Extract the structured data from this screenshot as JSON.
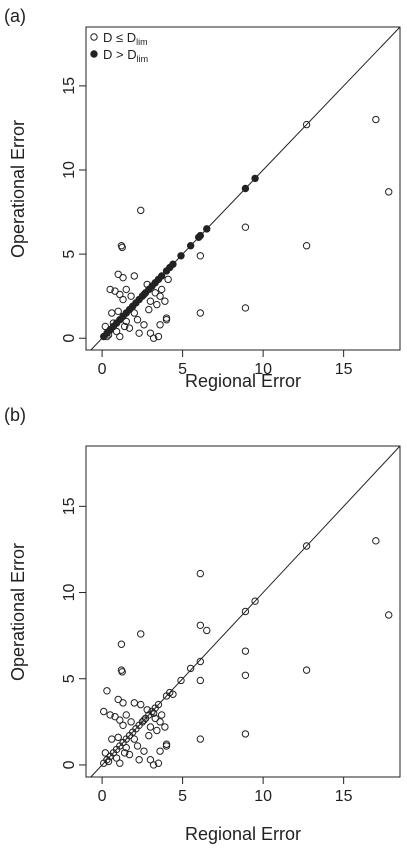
{
  "chart_data": [
    {
      "type": "scatter",
      "panel_label": "(a)",
      "xlabel": "Regional Error",
      "ylabel": "Operational Error",
      "xlim": [
        -1,
        18.5
      ],
      "ylim": [
        -0.7,
        18.5
      ],
      "x_ticks": [
        0,
        5,
        10,
        15
      ],
      "y_ticks": [
        0,
        5,
        10,
        15
      ],
      "identity_line": true,
      "legend": {
        "position": "top-left",
        "entries": [
          {
            "series": "open",
            "prefix": "D ≤ D",
            "sub": "lim"
          },
          {
            "series": "filled",
            "prefix": "D > D",
            "sub": "lim"
          }
        ]
      },
      "series": [
        {
          "key": "open",
          "marker": "open-circle",
          "points": [
            [
              17.0,
              13.0
            ],
            [
              17.8,
              8.7
            ],
            [
              12.7,
              5.5
            ],
            [
              8.9,
              6.6
            ],
            [
              8.9,
              1.8
            ],
            [
              6.1,
              4.9
            ],
            [
              6.1,
              1.5
            ],
            [
              2.4,
              7.6
            ],
            [
              1.2,
              5.5
            ],
            [
              1.25,
              5.4
            ],
            [
              1.0,
              3.8
            ],
            [
              1.3,
              3.6
            ],
            [
              2.0,
              3.7
            ],
            [
              0.5,
              2.9
            ],
            [
              0.8,
              2.8
            ],
            [
              1.1,
              2.6
            ],
            [
              1.3,
              2.3
            ],
            [
              1.8,
              2.5
            ],
            [
              2.6,
              2.6
            ],
            [
              3.0,
              2.2
            ],
            [
              3.4,
              2.0
            ],
            [
              3.7,
              2.9
            ],
            [
              3.6,
              2.5
            ],
            [
              0.2,
              0.7
            ],
            [
              0.5,
              0.5
            ],
            [
              0.7,
              0.9
            ],
            [
              0.4,
              0.2
            ],
            [
              1.0,
              1.6
            ],
            [
              1.5,
              1.0
            ],
            [
              2.0,
              1.5
            ],
            [
              2.3,
              0.3
            ],
            [
              2.6,
              0.8
            ],
            [
              3.0,
              0.3
            ],
            [
              3.2,
              0.0
            ],
            [
              3.5,
              0.1
            ],
            [
              3.6,
              0.8
            ],
            [
              4.0,
              1.2
            ],
            [
              4.0,
              1.1
            ],
            [
              1.1,
              0.1
            ],
            [
              0.9,
              0.4
            ],
            [
              1.5,
              2.9
            ],
            [
              2.8,
              3.2
            ],
            [
              3.3,
              2.7
            ],
            [
              0.6,
              1.5
            ],
            [
              2.2,
              1.1
            ],
            [
              3.9,
              2.2
            ],
            [
              1.7,
              0.6
            ],
            [
              4.1,
              3.5
            ],
            [
              0.3,
              0.1
            ],
            [
              1.4,
              0.7
            ],
            [
              2.9,
              1.7
            ],
            [
              12.7,
              12.7
            ]
          ]
        },
        {
          "key": "filled",
          "marker": "filled-circle",
          "points": [
            [
              0.1,
              0.1
            ],
            [
              0.3,
              0.3
            ],
            [
              0.5,
              0.5
            ],
            [
              0.7,
              0.7
            ],
            [
              0.9,
              0.9
            ],
            [
              1.1,
              1.1
            ],
            [
              1.3,
              1.3
            ],
            [
              1.5,
              1.5
            ],
            [
              1.7,
              1.7
            ],
            [
              1.9,
              1.9
            ],
            [
              2.1,
              2.1
            ],
            [
              2.3,
              2.3
            ],
            [
              2.5,
              2.5
            ],
            [
              2.7,
              2.7
            ],
            [
              2.9,
              2.9
            ],
            [
              3.1,
              3.1
            ],
            [
              3.3,
              3.3
            ],
            [
              3.5,
              3.5
            ],
            [
              3.7,
              3.7
            ],
            [
              4.0,
              4.0
            ],
            [
              4.2,
              4.2
            ],
            [
              4.4,
              4.4
            ],
            [
              4.9,
              4.9
            ],
            [
              5.5,
              5.5
            ],
            [
              6.0,
              6.0
            ],
            [
              6.1,
              6.1
            ],
            [
              6.5,
              6.5
            ],
            [
              8.9,
              8.9
            ],
            [
              9.5,
              9.5
            ]
          ]
        }
      ]
    },
    {
      "type": "scatter",
      "panel_label": "(b)",
      "xlabel": "Regional Error",
      "ylabel": "Operational Error",
      "xlim": [
        -1,
        18.5
      ],
      "ylim": [
        -0.7,
        18.5
      ],
      "x_ticks": [
        0,
        5,
        10,
        15
      ],
      "y_ticks": [
        0,
        5,
        10,
        15
      ],
      "identity_line": true,
      "series": [
        {
          "key": "open",
          "marker": "open-circle",
          "points": [
            [
              17.0,
              13.0
            ],
            [
              17.8,
              8.7
            ],
            [
              12.7,
              12.7
            ],
            [
              12.7,
              5.5
            ],
            [
              8.9,
              8.9
            ],
            [
              8.9,
              6.6
            ],
            [
              8.9,
              5.2
            ],
            [
              8.9,
              1.8
            ],
            [
              6.1,
              11.1
            ],
            [
              6.1,
              8.1
            ],
            [
              6.5,
              7.8
            ],
            [
              6.1,
              6.0
            ],
            [
              6.1,
              4.9
            ],
            [
              6.1,
              1.5
            ],
            [
              9.5,
              9.5
            ],
            [
              5.5,
              5.6
            ],
            [
              4.9,
              4.9
            ],
            [
              2.4,
              7.6
            ],
            [
              1.2,
              7.0
            ],
            [
              1.2,
              5.5
            ],
            [
              1.25,
              5.4
            ],
            [
              0.3,
              4.3
            ],
            [
              0.1,
              3.1
            ],
            [
              1.0,
              3.8
            ],
            [
              1.3,
              3.6
            ],
            [
              2.0,
              3.6
            ],
            [
              0.5,
              2.9
            ],
            [
              0.8,
              2.8
            ],
            [
              1.1,
              2.6
            ],
            [
              1.3,
              2.3
            ],
            [
              1.8,
              2.5
            ],
            [
              2.6,
              2.6
            ],
            [
              3.0,
              2.2
            ],
            [
              3.4,
              2.0
            ],
            [
              3.7,
              2.9
            ],
            [
              3.6,
              2.5
            ],
            [
              4.0,
              4.0
            ],
            [
              4.2,
              4.2
            ],
            [
              4.4,
              4.1
            ],
            [
              3.5,
              3.5
            ],
            [
              3.3,
              3.3
            ],
            [
              3.1,
              3.1
            ],
            [
              2.9,
              2.9
            ],
            [
              2.7,
              2.7
            ],
            [
              2.5,
              2.5
            ],
            [
              2.3,
              2.3
            ],
            [
              2.1,
              2.1
            ],
            [
              1.9,
              1.9
            ],
            [
              1.7,
              1.7
            ],
            [
              1.5,
              1.5
            ],
            [
              1.3,
              1.3
            ],
            [
              1.1,
              1.1
            ],
            [
              0.9,
              0.9
            ],
            [
              0.7,
              0.7
            ],
            [
              0.5,
              0.5
            ],
            [
              0.3,
              0.3
            ],
            [
              0.1,
              0.1
            ],
            [
              0.2,
              0.7
            ],
            [
              0.5,
              0.5
            ],
            [
              0.4,
              0.2
            ],
            [
              1.0,
              1.6
            ],
            [
              1.5,
              1.0
            ],
            [
              2.0,
              1.5
            ],
            [
              2.3,
              0.3
            ],
            [
              2.6,
              0.8
            ],
            [
              3.0,
              0.3
            ],
            [
              3.2,
              0.0
            ],
            [
              3.5,
              0.1
            ],
            [
              3.6,
              0.8
            ],
            [
              4.0,
              1.2
            ],
            [
              4.0,
              1.1
            ],
            [
              1.1,
              0.1
            ],
            [
              0.9,
              0.4
            ],
            [
              1.5,
              2.9
            ],
            [
              2.8,
              3.2
            ],
            [
              3.3,
              2.7
            ],
            [
              0.6,
              1.5
            ],
            [
              2.2,
              1.1
            ],
            [
              3.9,
              2.2
            ],
            [
              1.7,
              0.6
            ],
            [
              1.4,
              0.7
            ],
            [
              2.9,
              1.7
            ],
            [
              2.4,
              3.5
            ],
            [
              3.2,
              3.0
            ]
          ]
        }
      ]
    }
  ]
}
